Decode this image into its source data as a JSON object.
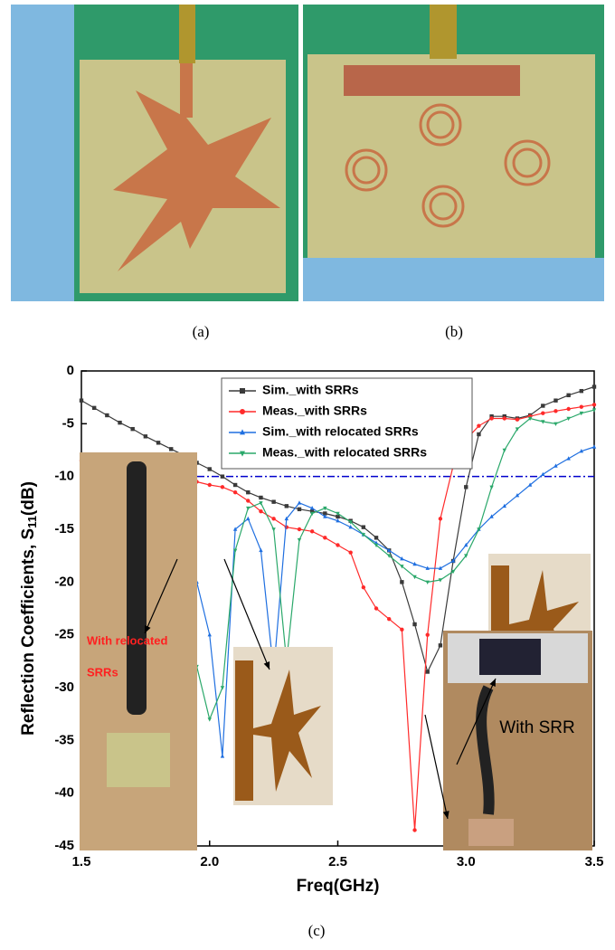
{
  "panel_labels": {
    "a": "(a)",
    "b": "(b)",
    "c": "(c)"
  },
  "chart_data": {
    "type": "line",
    "x_label": "Freq(GHz)",
    "y_label_parts": [
      "Reflection Coefficients, S",
      "11",
      "(dB)"
    ],
    "x": [
      1.5,
      1.55,
      1.6,
      1.65,
      1.7,
      1.75,
      1.8,
      1.85,
      1.9,
      1.95,
      2.0,
      2.05,
      2.1,
      2.15,
      2.2,
      2.25,
      2.3,
      2.35,
      2.4,
      2.45,
      2.5,
      2.55,
      2.6,
      2.65,
      2.7,
      2.75,
      2.8,
      2.85,
      2.9,
      2.95,
      3.0,
      3.05,
      3.1,
      3.15,
      3.2,
      3.25,
      3.3,
      3.35,
      3.4,
      3.45,
      3.5
    ],
    "series": [
      {
        "name": "Sim._with SRRs",
        "color": "#3a3a3a",
        "marker": "square",
        "values": [
          -2.8,
          -3.5,
          -4.2,
          -4.9,
          -5.5,
          -6.2,
          -6.8,
          -7.4,
          -8.0,
          -8.7,
          -9.3,
          -10.0,
          -10.8,
          -11.5,
          -12.0,
          -12.4,
          -12.8,
          -13.1,
          -13.3,
          -13.5,
          -13.8,
          -14.2,
          -14.8,
          -15.8,
          -17.0,
          -20.0,
          -24.0,
          -28.5,
          -26.0,
          -18.0,
          -11.0,
          -6.0,
          -4.3,
          -4.3,
          -4.5,
          -4.2,
          -3.3,
          -2.8,
          -2.3,
          -1.9,
          -1.5
        ]
      },
      {
        "name": "Meas._with SRRs",
        "color": "#ff2a2a",
        "marker": "circle",
        "values": [
          -8.5,
          -9.2,
          -10.0,
          -10.0,
          -9.8,
          -10.5,
          -9.8,
          -10.2,
          -10.3,
          -10.5,
          -10.8,
          -11.0,
          -11.5,
          -12.3,
          -13.3,
          -14.0,
          -14.8,
          -15.0,
          -15.2,
          -15.8,
          -16.5,
          -17.2,
          -20.5,
          -22.5,
          -23.5,
          -24.5,
          -43.5,
          -25.0,
          -14.0,
          -9.0,
          -6.5,
          -5.2,
          -4.5,
          -4.5,
          -4.6,
          -4.3,
          -4.0,
          -3.8,
          -3.6,
          -3.4,
          -3.2
        ]
      },
      {
        "name": "Sim._with relocated SRRs",
        "color": "#1f6fe0",
        "marker": "triangle",
        "values": [
          -9.2,
          -9.8,
          -10.5,
          -11.0,
          -11.8,
          -12.5,
          -13.5,
          -15.0,
          -17.0,
          -20.0,
          -25.0,
          -36.5,
          -15.0,
          -14.0,
          -17.0,
          -28.5,
          -14.0,
          -12.5,
          -13.0,
          -13.8,
          -14.2,
          -14.8,
          -15.5,
          -16.3,
          -17.0,
          -17.8,
          -18.3,
          -18.7,
          -18.7,
          -18.0,
          -16.5,
          -15.0,
          -13.8,
          -12.8,
          -11.8,
          -10.8,
          -9.8,
          -9.0,
          -8.3,
          -7.6,
          -7.2
        ]
      },
      {
        "name": "Meas._with relocated SRRs",
        "color": "#2aa86a",
        "marker": "triangle-down",
        "values": [
          -10.0,
          -11.5,
          -13.0,
          -14.5,
          -16.5,
          -18.5,
          -20.0,
          -21.5,
          -24.0,
          -28.0,
          -33.0,
          -30.0,
          -17.0,
          -13.0,
          -12.5,
          -15.0,
          -27.5,
          -16.0,
          -13.5,
          -13.0,
          -13.5,
          -14.3,
          -15.5,
          -16.5,
          -17.5,
          -18.5,
          -19.5,
          -20.0,
          -19.8,
          -19.0,
          -17.5,
          -15.0,
          -11.0,
          -7.5,
          -5.5,
          -4.5,
          -4.8,
          -5.0,
          -4.5,
          -4.0,
          -3.7
        ]
      }
    ],
    "reference_line": {
      "value": -10,
      "color": "#0000cc"
    },
    "xlim": [
      1.5,
      3.5
    ],
    "xticks": [
      1.5,
      2.0,
      2.5,
      3.0,
      3.5
    ],
    "ylim": [
      -45,
      0
    ],
    "yticks": [
      0,
      -5,
      -10,
      -15,
      -20,
      -25,
      -30,
      -35,
      -40,
      -45
    ],
    "legend": "top",
    "annotations": {
      "left_photo": [
        "With relocated",
        "SRRs"
      ],
      "right_photo": "With SRR"
    }
  }
}
